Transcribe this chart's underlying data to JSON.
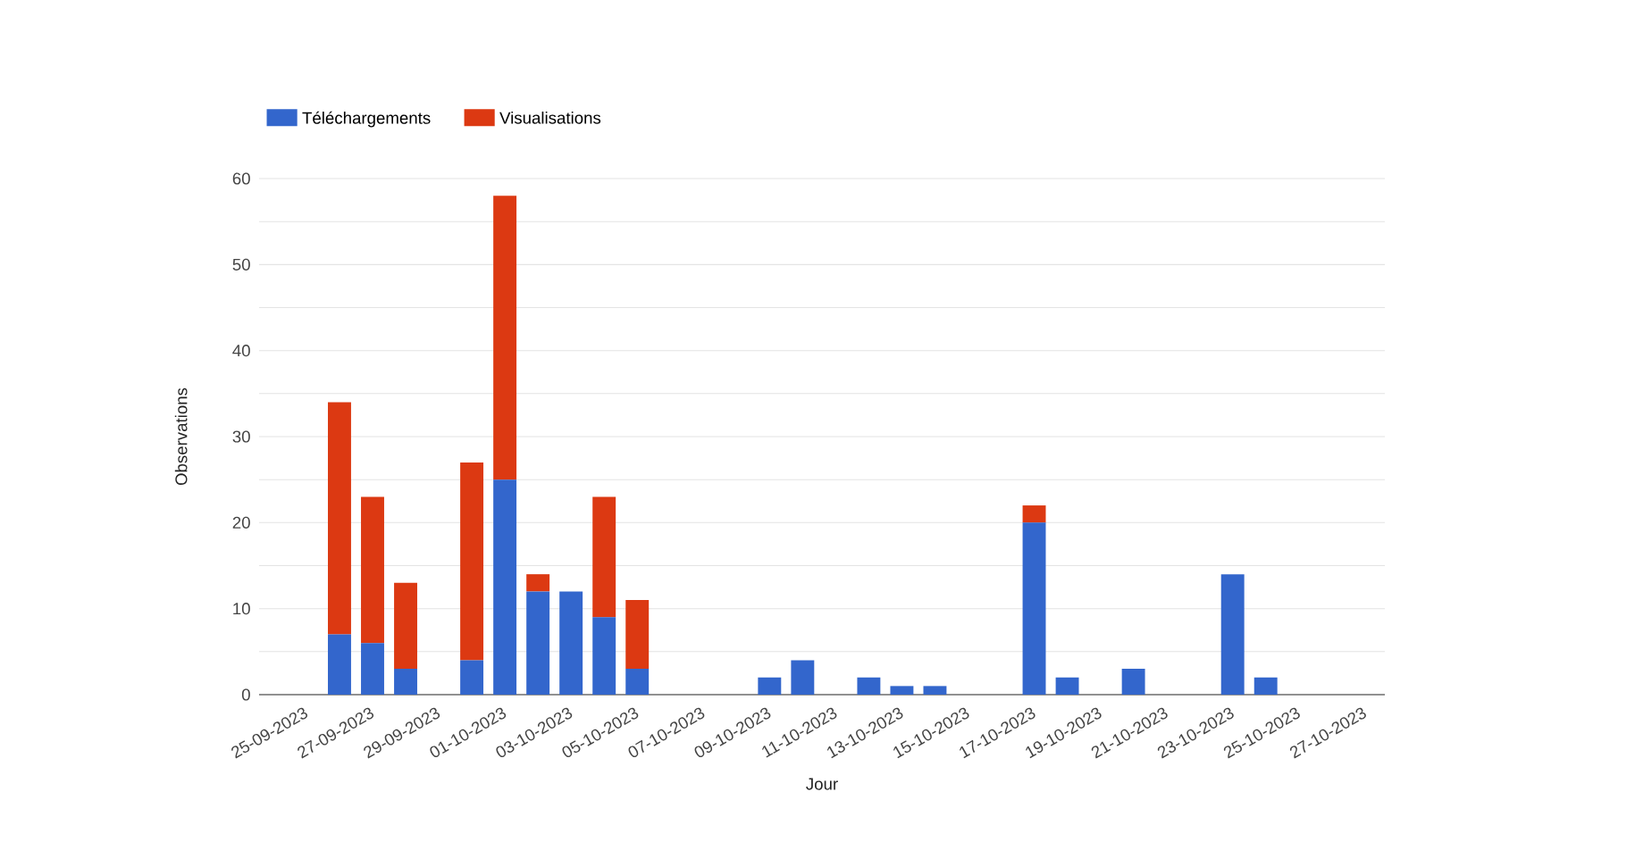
{
  "chart_data": {
    "type": "bar",
    "stacked": true,
    "xlabel": "Jour",
    "ylabel": "Observations",
    "categories": [
      "25-09-2023",
      null,
      "27-09-2023",
      null,
      "29-09-2023",
      null,
      "01-10-2023",
      null,
      "03-10-2023",
      null,
      "05-10-2023",
      null,
      "07-10-2023",
      null,
      "09-10-2023",
      null,
      "11-10-2023",
      null,
      "13-10-2023",
      null,
      "15-10-2023",
      null,
      "17-10-2023",
      null,
      "19-10-2023",
      null,
      "21-10-2023",
      null,
      "23-10-2023",
      null,
      "25-10-2023",
      null,
      "27-10-2023"
    ],
    "series": [
      {
        "name": "Téléchargements",
        "color": "#3366cc",
        "values": [
          0,
          7,
          6,
          3,
          0,
          4,
          25,
          12,
          12,
          9,
          3,
          0,
          0,
          0,
          2,
          4,
          0,
          2,
          1,
          1,
          0,
          0,
          20,
          2,
          0,
          3,
          0,
          0,
          14,
          2,
          0,
          0,
          0
        ]
      },
      {
        "name": "Visualisations",
        "color": "#dc3912",
        "values": [
          0,
          27,
          17,
          10,
          0,
          23,
          33,
          2,
          0,
          14,
          8,
          0,
          0,
          0,
          0,
          0,
          0,
          0,
          0,
          0,
          0,
          0,
          2,
          0,
          0,
          0,
          0,
          0,
          0,
          0,
          0,
          0,
          0
        ]
      }
    ],
    "ylim": [
      0,
      60
    ],
    "yticks": [
      0,
      {
        "value": 5,
        "label": null
      },
      10,
      {
        "value": 15,
        "label": null
      },
      20,
      {
        "value": 25,
        "label": null
      },
      30,
      {
        "value": 35,
        "label": null
      },
      40,
      {
        "value": 45,
        "label": null
      },
      50,
      {
        "value": 55,
        "label": null
      },
      60
    ],
    "grid": "y",
    "legend": "top left"
  }
}
